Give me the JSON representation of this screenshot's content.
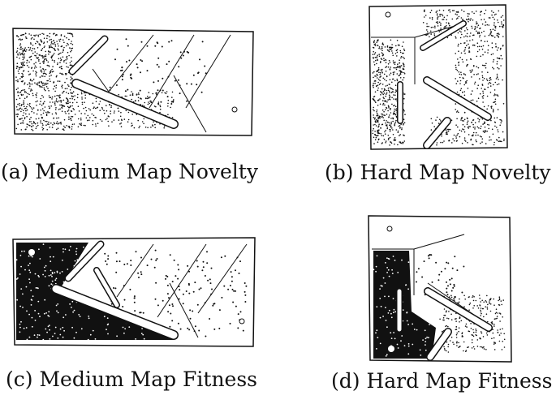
{
  "figures": [
    {
      "id": "a",
      "caption": "(a) Medium Map Novelty",
      "map": "medium",
      "method": "novelty"
    },
    {
      "id": "b",
      "caption": "(b) Hard Map Novelty",
      "map": "hard",
      "method": "novelty"
    },
    {
      "id": "c",
      "caption": "(c) Medium Map Fitness",
      "map": "medium",
      "method": "fitness"
    },
    {
      "id": "d",
      "caption": "(d) Hard Map Fitness",
      "map": "hard",
      "method": "fitness"
    }
  ],
  "colors": {
    "ink": "#111111",
    "wall": "#ffffff",
    "background": "#ffffff"
  }
}
